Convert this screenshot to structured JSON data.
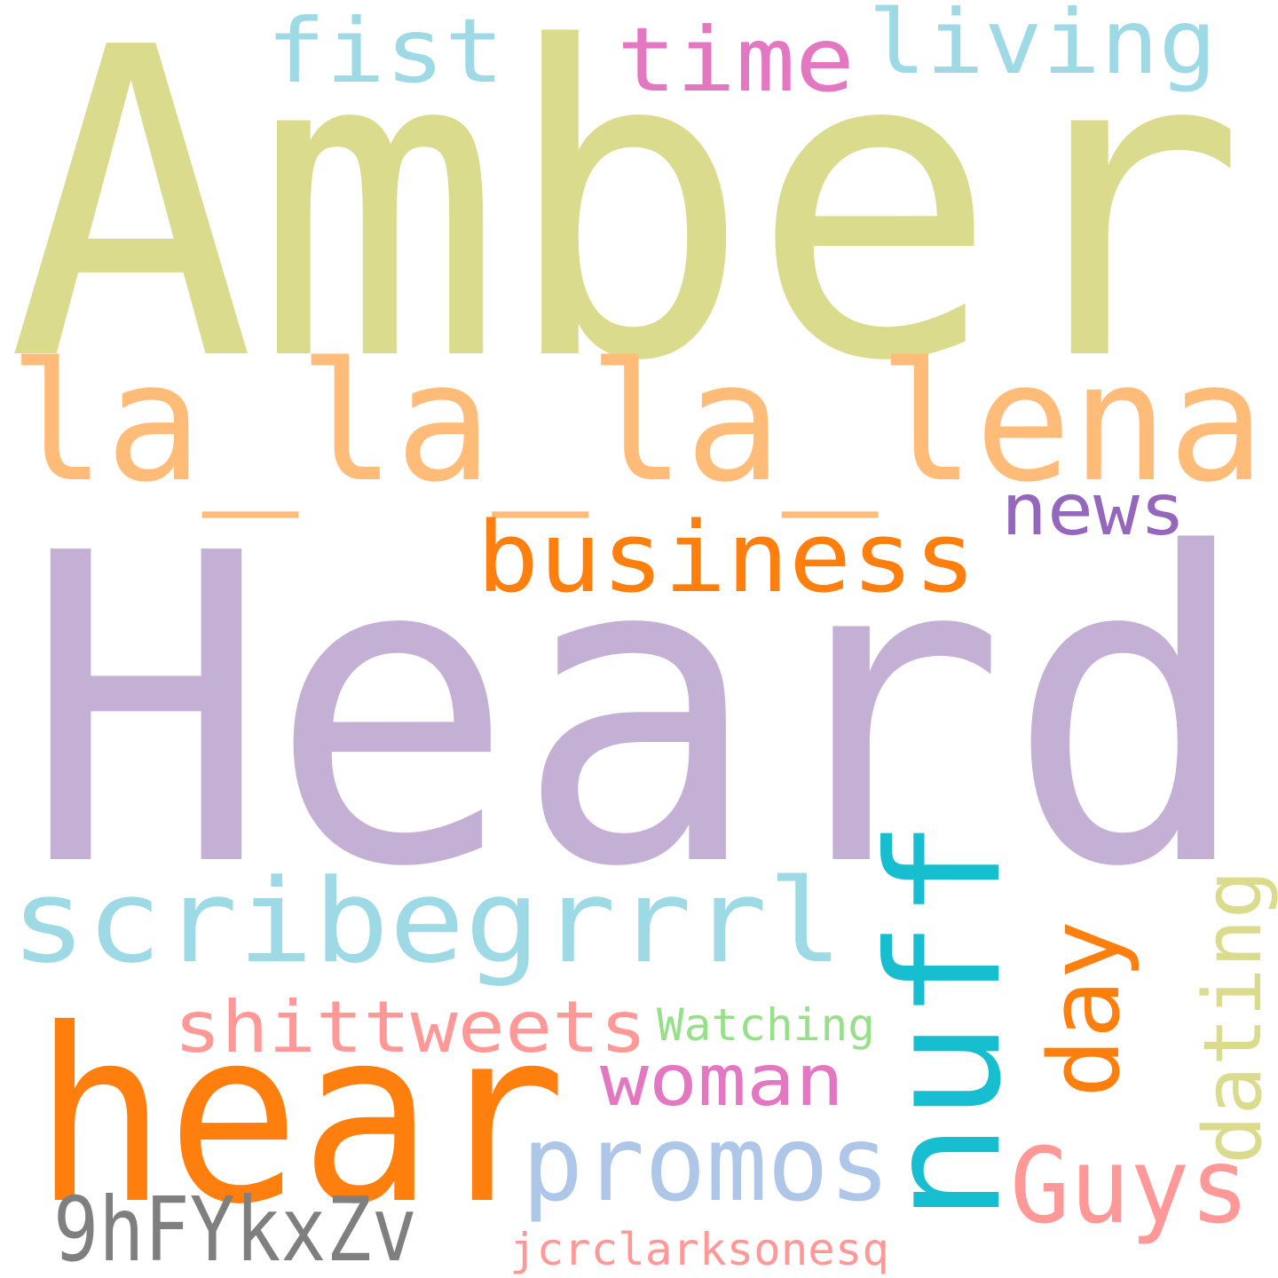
{
  "words": {
    "amber": {
      "text": "Amber",
      "color": "#dbdb8d"
    },
    "heard": {
      "text": "Heard",
      "color": "#c5b0d5"
    },
    "la_lena": {
      "text": "la_la_la_lena",
      "color": "#ffbb78"
    },
    "hear": {
      "text": "hear",
      "color": "#ff7f0e"
    },
    "nuff": {
      "text": "nuff",
      "color": "#17becf"
    },
    "scribegrrrl": {
      "text": "scribegrrrl",
      "color": "#9edae5"
    },
    "business": {
      "text": "business",
      "color": "#ff7f0e"
    },
    "fist": {
      "text": "fist",
      "color": "#9edae5"
    },
    "time": {
      "text": "time",
      "color": "#e377c2"
    },
    "living": {
      "text": "living",
      "color": "#9edae5"
    },
    "news": {
      "text": "news",
      "color": "#9467bd"
    },
    "promos": {
      "text": "promos",
      "color": "#aec7e8"
    },
    "guys": {
      "text": "Guys",
      "color": "#ff9896"
    },
    "day": {
      "text": "day",
      "color": "#ff7f0e"
    },
    "dating": {
      "text": "dating",
      "color": "#dbdb8d"
    },
    "shittweets": {
      "text": "shittweets",
      "color": "#ff9896"
    },
    "woman": {
      "text": "woman",
      "color": "#e377c2"
    },
    "watching": {
      "text": "Watching",
      "color": "#98df8a"
    },
    "code": {
      "text": "9hFYkxZv",
      "color": "#7f7f7f"
    },
    "jcrclarksonesq": {
      "text": "jcrclarksonesq",
      "color": "#ff9896"
    }
  }
}
